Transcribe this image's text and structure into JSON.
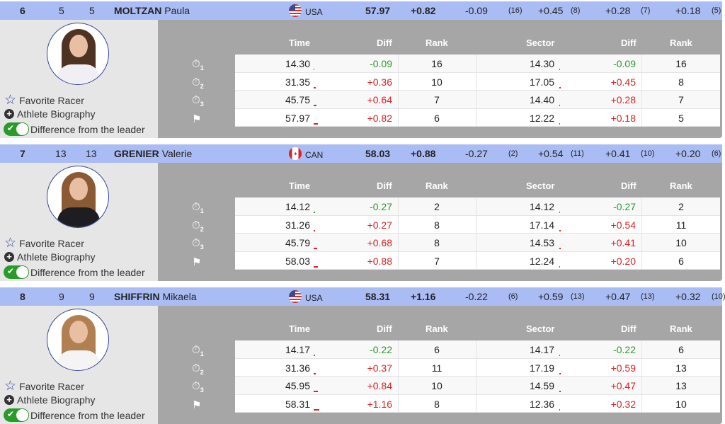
{
  "labels": {
    "favorite": "Favorite Racer",
    "bio": "Athlete Biography",
    "diff_toggle": "Difference from the leader"
  },
  "table_headers": {
    "time": "Time",
    "diff": "Diff",
    "rank": "Rank",
    "sector": "Sector",
    "sector_diff": "Diff",
    "sector_rank": "Rank"
  },
  "split_icons": [
    "stopwatch-1",
    "stopwatch-2",
    "stopwatch-3",
    "finish-flag"
  ],
  "colors": {
    "header": "#aabcf4",
    "positive": "#d22222",
    "negative": "#2a9a2a",
    "toggle_on": "#2a9a2a"
  },
  "racers": [
    {
      "rank": "6",
      "bib": "5",
      "start": "5",
      "last": "MOLTZAN",
      "first": "Paula",
      "country": "USA",
      "time": "57.97",
      "diff": "+0.82",
      "sectors": [
        {
          "d": "-0.09",
          "r": "(16)"
        },
        {
          "d": "+0.45",
          "r": "(8)"
        },
        {
          "d": "+0.28",
          "r": "(7)"
        },
        {
          "d": "+0.18",
          "r": "(5)"
        }
      ],
      "rows": [
        [
          "14.30",
          "-0.09",
          "16",
          "14.30",
          "-0.09",
          "16"
        ],
        [
          "31.35",
          "+0.36",
          "10",
          "17.05",
          "+0.45",
          "8"
        ],
        [
          "45.75",
          "+0.64",
          "7",
          "14.40",
          "+0.28",
          "7"
        ],
        [
          "57.97",
          "+0.82",
          "6",
          "12.22",
          "+0.18",
          "5"
        ]
      ],
      "suit": "#f0f0f4",
      "hair": "#4e3222"
    },
    {
      "rank": "7",
      "bib": "13",
      "start": "13",
      "last": "GRENIER",
      "first": "Valerie",
      "country": "CAN",
      "time": "58.03",
      "diff": "+0.88",
      "sectors": [
        {
          "d": "-0.27",
          "r": "(2)"
        },
        {
          "d": "+0.54",
          "r": "(11)"
        },
        {
          "d": "+0.41",
          "r": "(10)"
        },
        {
          "d": "+0.20",
          "r": "(6)"
        }
      ],
      "rows": [
        [
          "14.12",
          "-0.27",
          "2",
          "14.12",
          "-0.27",
          "2"
        ],
        [
          "31.26",
          "+0.27",
          "8",
          "17.14",
          "+0.54",
          "11"
        ],
        [
          "45.79",
          "+0.68",
          "8",
          "14.53",
          "+0.41",
          "10"
        ],
        [
          "58.03",
          "+0.88",
          "7",
          "12.24",
          "+0.20",
          "6"
        ]
      ],
      "suit": "#1e1e22",
      "hair": "#8a5a34"
    },
    {
      "rank": "8",
      "bib": "9",
      "start": "9",
      "last": "SHIFFRIN",
      "first": "Mikaela",
      "country": "USA",
      "time": "58.31",
      "diff": "+1.16",
      "sectors": [
        {
          "d": "-0.22",
          "r": "(6)"
        },
        {
          "d": "+0.59",
          "r": "(13)"
        },
        {
          "d": "+0.47",
          "r": "(13)"
        },
        {
          "d": "+0.32",
          "r": "(10)"
        }
      ],
      "rows": [
        [
          "14.17",
          "-0.22",
          "6",
          "14.17",
          "-0.22",
          "6"
        ],
        [
          "31.36",
          "+0.37",
          "11",
          "17.19",
          "+0.59",
          "13"
        ],
        [
          "45.95",
          "+0.84",
          "10",
          "14.59",
          "+0.47",
          "13"
        ],
        [
          "58.31",
          "+1.16",
          "8",
          "12.36",
          "+0.32",
          "10"
        ]
      ],
      "suit": "#f4f4f4",
      "hair": "#b08050"
    }
  ]
}
